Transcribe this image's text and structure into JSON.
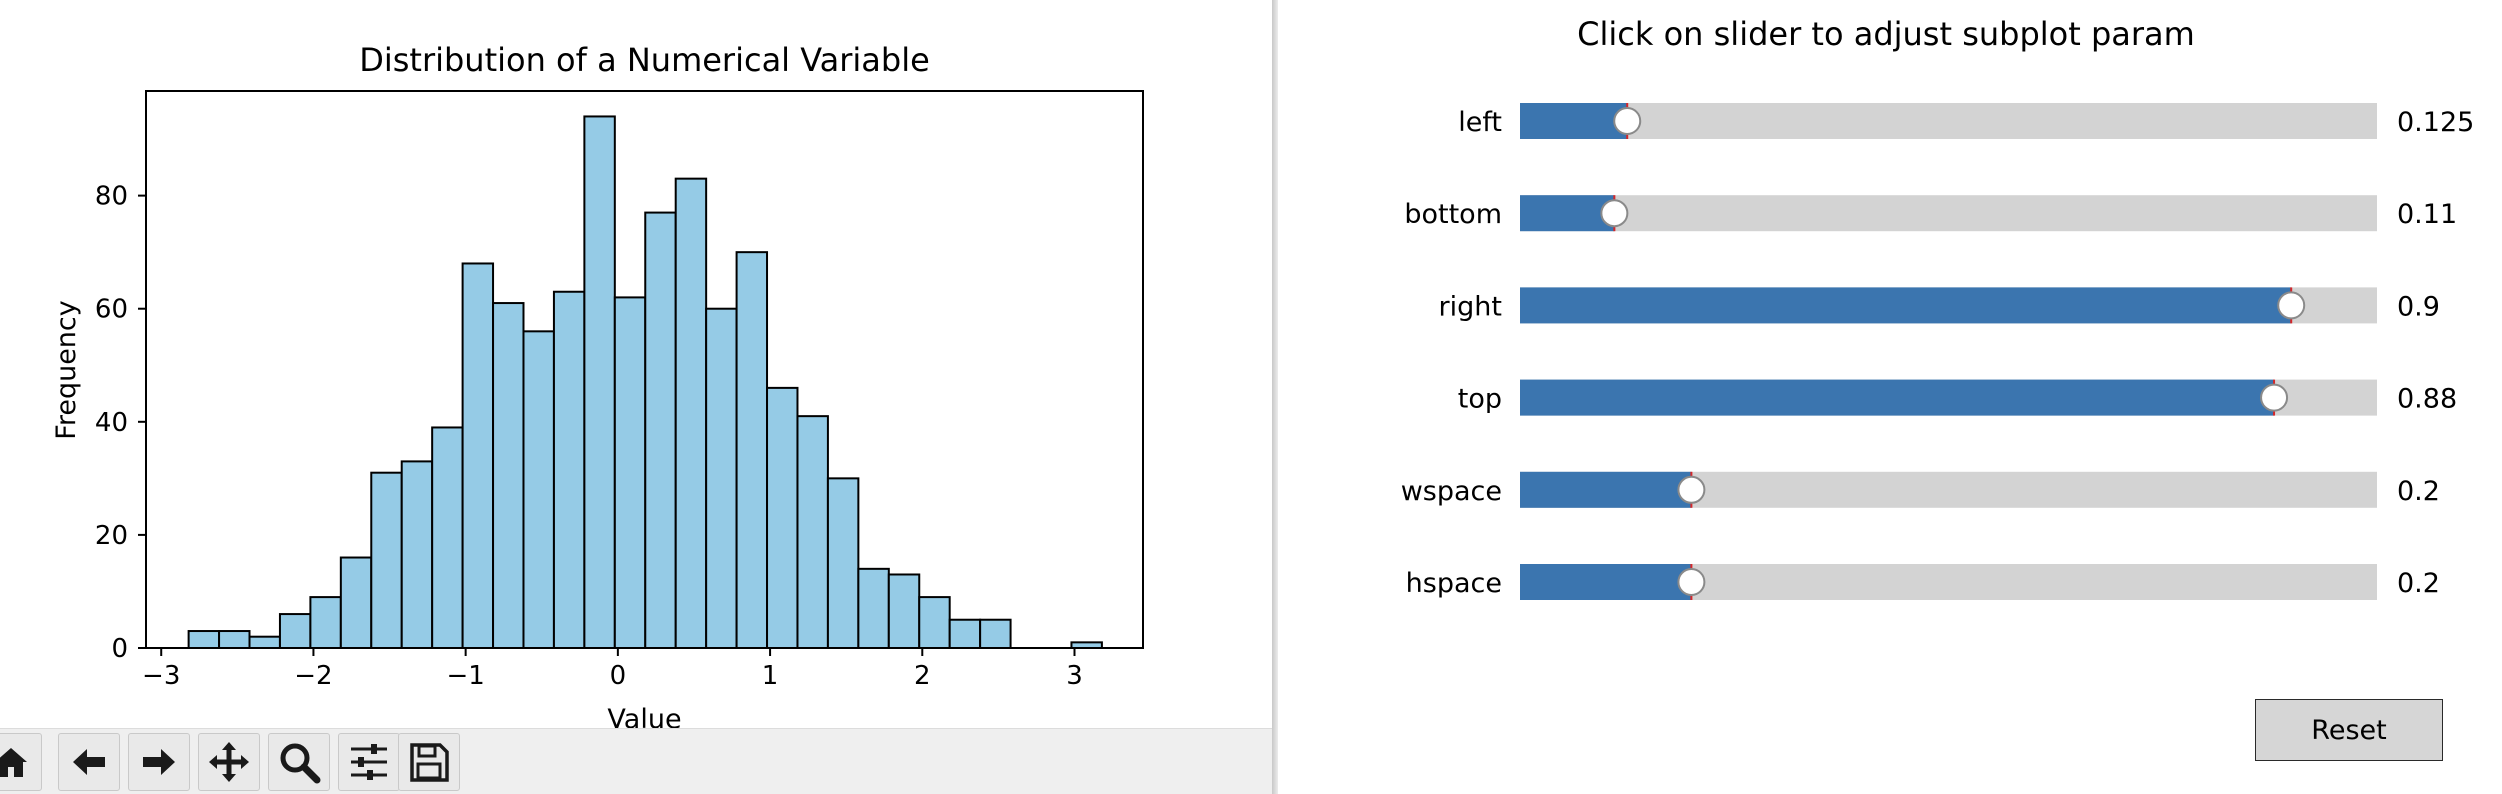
{
  "left_figure": {
    "chart_data": {
      "type": "bar",
      "title": "Distribution of a Numerical Variable",
      "xlabel": "Value",
      "ylabel": "Frequency",
      "xlim": [
        -3.1,
        3.45
      ],
      "ylim": [
        0,
        98.5
      ],
      "x_ticks": [
        "−3",
        "−2",
        "−1",
        "0",
        "1",
        "2",
        "3"
      ],
      "x_tick_values": [
        -3,
        -2,
        -1,
        0,
        1,
        2,
        3
      ],
      "y_ticks": [
        "0",
        "20",
        "40",
        "60",
        "80"
      ],
      "y_tick_values": [
        0,
        20,
        40,
        60,
        80
      ],
      "bin_edges": [
        -2.82,
        -2.62,
        -2.42,
        -2.22,
        -2.02,
        -1.82,
        -1.62,
        -1.42,
        -1.22,
        -1.02,
        -0.82,
        -0.62,
        -0.42,
        -0.22,
        -0.02,
        0.18,
        0.38,
        0.58,
        0.78,
        0.98,
        1.18,
        1.38,
        1.58,
        1.78,
        1.98,
        2.18,
        2.38,
        2.58,
        2.78,
        2.98,
        3.18
      ],
      "values": [
        3,
        3,
        2,
        6,
        9,
        16,
        31,
        33,
        39,
        68,
        61,
        56,
        63,
        94,
        62,
        77,
        83,
        60,
        70,
        46,
        41,
        30,
        14,
        13,
        9,
        5,
        5,
        0,
        0,
        1
      ],
      "bar_color": "#95cbe6",
      "edge_color": "#000000",
      "grid": false
    }
  },
  "toolbar": {
    "buttons": [
      {
        "name": "home-icon"
      },
      {
        "name": "back-arrow-icon"
      },
      {
        "name": "forward-arrow-icon"
      },
      {
        "name": "pan-icon"
      },
      {
        "name": "zoom-icon"
      },
      {
        "name": "configure-subplots-icon"
      },
      {
        "name": "save-icon"
      }
    ]
  },
  "subplot_tool": {
    "title": "Click on slider to adjust subplot param",
    "sliders": [
      {
        "label": "left",
        "value": 0.125,
        "display": "0.125",
        "range": [
          0,
          0.999
        ]
      },
      {
        "label": "bottom",
        "value": 0.11,
        "display": "0.11",
        "range": [
          0,
          0.999
        ]
      },
      {
        "label": "right",
        "value": 0.9,
        "display": "0.9",
        "range": [
          0.001,
          1
        ]
      },
      {
        "label": "top",
        "value": 0.88,
        "display": "0.88",
        "range": [
          0.001,
          1
        ]
      },
      {
        "label": "wspace",
        "value": 0.2,
        "display": "0.2",
        "range": [
          0,
          1
        ]
      },
      {
        "label": "hspace",
        "value": 0.2,
        "display": "0.2",
        "range": [
          0,
          1
        ]
      }
    ],
    "reset_label": "Reset",
    "colors": {
      "fill": "#3b75af",
      "track": "#d3d3d3",
      "handle": "#ffffff",
      "marker": "#d62728"
    }
  }
}
